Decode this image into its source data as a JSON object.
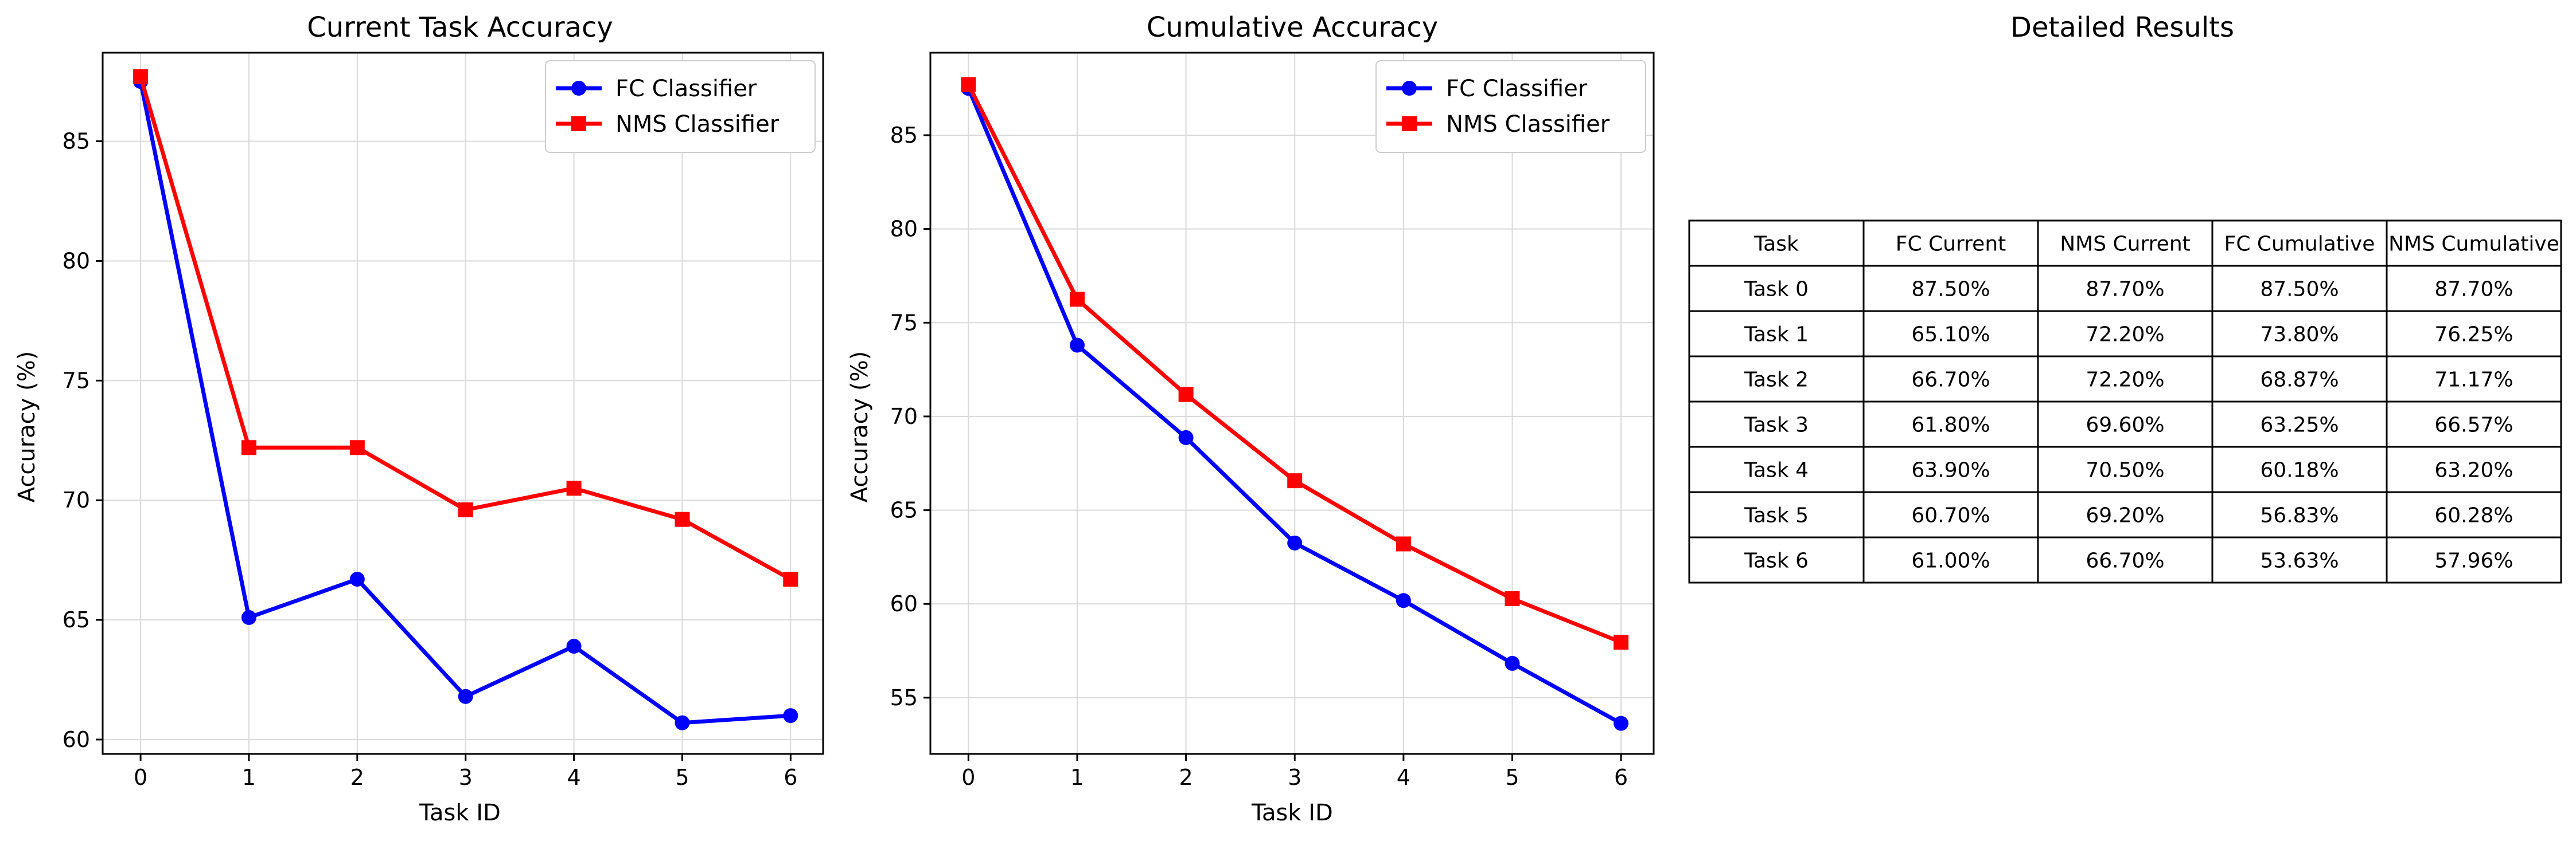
{
  "charts": [
    {
      "chart_data": {
        "type": "line",
        "title": "Current Task Accuracy",
        "xlabel": "Task ID",
        "ylabel": "Accuracy (%)",
        "x": [
          0,
          1,
          2,
          3,
          4,
          5,
          6
        ],
        "xlim": [
          -0.35,
          6.3
        ],
        "ylim": [
          59.4,
          88.7
        ],
        "yticks": [
          60,
          65,
          70,
          75,
          80,
          85
        ],
        "grid": true,
        "legend_position": "top-right",
        "series": [
          {
            "name": "FC Classifier",
            "color": "#0000ff",
            "marker": "circle",
            "values": [
              87.5,
              65.1,
              66.7,
              61.8,
              63.9,
              60.7,
              61.0
            ]
          },
          {
            "name": "NMS Classifier",
            "color": "#ff0000",
            "marker": "square",
            "values": [
              87.7,
              72.2,
              72.2,
              69.6,
              70.5,
              69.2,
              66.7
            ]
          }
        ]
      }
    },
    {
      "chart_data": {
        "type": "line",
        "title": "Cumulative Accuracy",
        "xlabel": "Task ID",
        "ylabel": "Accuracy (%)",
        "x": [
          0,
          1,
          2,
          3,
          4,
          5,
          6
        ],
        "xlim": [
          -0.35,
          6.3
        ],
        "ylim": [
          52.0,
          89.4
        ],
        "yticks": [
          55,
          60,
          65,
          70,
          75,
          80,
          85
        ],
        "grid": true,
        "legend_position": "top-right",
        "series": [
          {
            "name": "FC Classifier",
            "color": "#0000ff",
            "marker": "circle",
            "values": [
              87.5,
              73.8,
              68.87,
              63.25,
              60.18,
              56.83,
              53.63
            ]
          },
          {
            "name": "NMS Classifier",
            "color": "#ff0000",
            "marker": "square",
            "values": [
              87.7,
              76.25,
              71.17,
              66.57,
              63.2,
              60.28,
              57.96
            ]
          }
        ]
      }
    }
  ],
  "table": {
    "title": "Detailed Results",
    "headers": [
      "Task",
      "FC Current",
      "NMS Current",
      "FC Cumulative",
      "NMS Cumulative"
    ],
    "rows": [
      [
        "Task 0",
        "87.50%",
        "87.70%",
        "87.50%",
        "87.70%"
      ],
      [
        "Task 1",
        "65.10%",
        "72.20%",
        "73.80%",
        "76.25%"
      ],
      [
        "Task 2",
        "66.70%",
        "72.20%",
        "68.87%",
        "71.17%"
      ],
      [
        "Task 3",
        "61.80%",
        "69.60%",
        "63.25%",
        "66.57%"
      ],
      [
        "Task 4",
        "63.90%",
        "70.50%",
        "60.18%",
        "63.20%"
      ],
      [
        "Task 5",
        "60.70%",
        "69.20%",
        "56.83%",
        "60.28%"
      ],
      [
        "Task 6",
        "61.00%",
        "66.70%",
        "53.63%",
        "57.96%"
      ]
    ]
  }
}
